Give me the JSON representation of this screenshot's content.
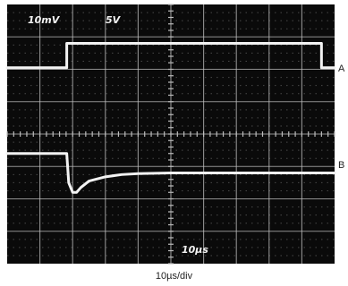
{
  "chart_data": {
    "type": "line",
    "title": "",
    "screen_labels": {
      "ch_a_scale": "10mV",
      "ch_b_scale": "5V",
      "timebase": "10µs"
    },
    "caption": "10µs/div",
    "x_divisions": 10,
    "y_divisions": 8,
    "x_unit": "div",
    "y_unit": "div",
    "grid": true,
    "series": [
      {
        "name": "A",
        "x": [
          0,
          1.82,
          1.82,
          9.6,
          9.6,
          10
        ],
        "y": [
          2.05,
          2.05,
          2.8,
          2.8,
          2.05,
          2.05
        ]
      },
      {
        "name": "B",
        "x": [
          0,
          1.82,
          1.88,
          2.0,
          2.12,
          2.25,
          2.5,
          3.0,
          3.5,
          4.0,
          5.0,
          6.0,
          7.0,
          8.0,
          9.0,
          10.0
        ],
        "y": [
          -0.6,
          -0.6,
          -1.5,
          -1.8,
          -1.8,
          -1.65,
          -1.45,
          -1.32,
          -1.25,
          -1.22,
          -1.2,
          -1.2,
          -1.2,
          -1.2,
          -1.2,
          -1.2
        ]
      }
    ],
    "trace_color": "#f2f2f2",
    "screen_color": "#0a0a0a"
  }
}
